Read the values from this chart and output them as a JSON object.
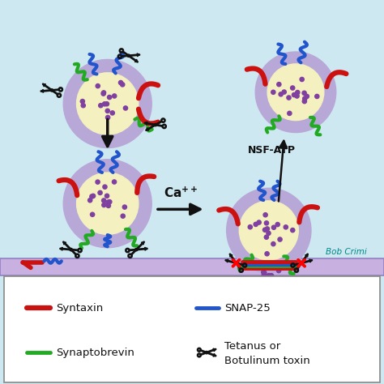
{
  "bg_color": "#cde8f0",
  "vesicle_outer_color": "#b8a8d8",
  "vesicle_inner_color": "#f5f0c0",
  "dot_color": "#8040a0",
  "syntaxin_color": "#cc1111",
  "snap25_color": "#2255cc",
  "synaptobrevin_color": "#22aa22",
  "scissors_color": "#111111",
  "membrane_color": "#c8b0e0",
  "arrow_color": "#111111",
  "ca_label": "Ca++",
  "nsf_label": "NSF-ATP",
  "credit": "Bob Crimi"
}
